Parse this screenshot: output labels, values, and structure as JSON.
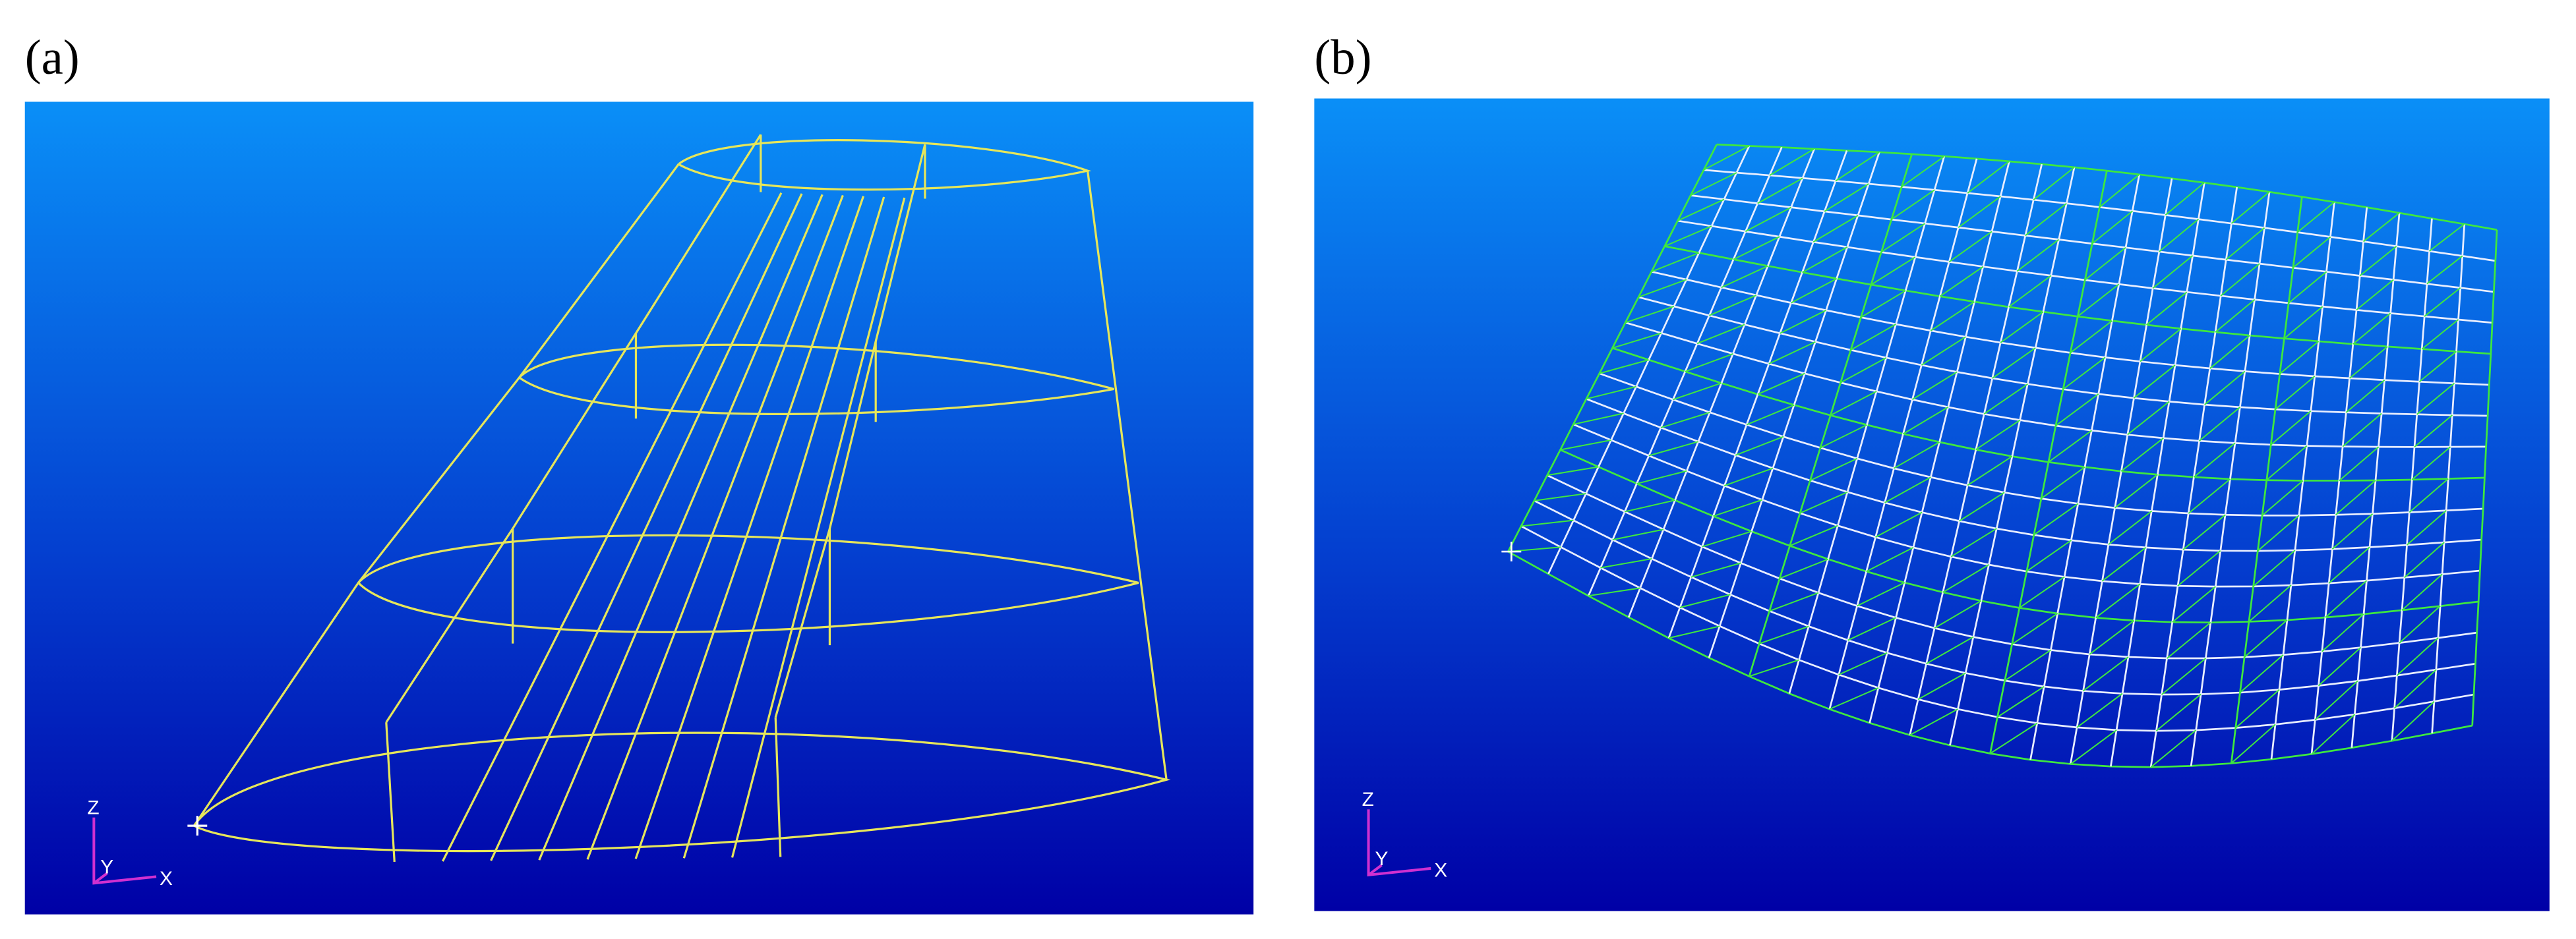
{
  "panels": [
    {
      "label": "(a)",
      "triad": {
        "z": "Z",
        "y": "Y",
        "x": "X"
      }
    },
    {
      "label": "(b)",
      "triad": {
        "z": "Z",
        "y": "Y",
        "x": "X"
      }
    }
  ]
}
